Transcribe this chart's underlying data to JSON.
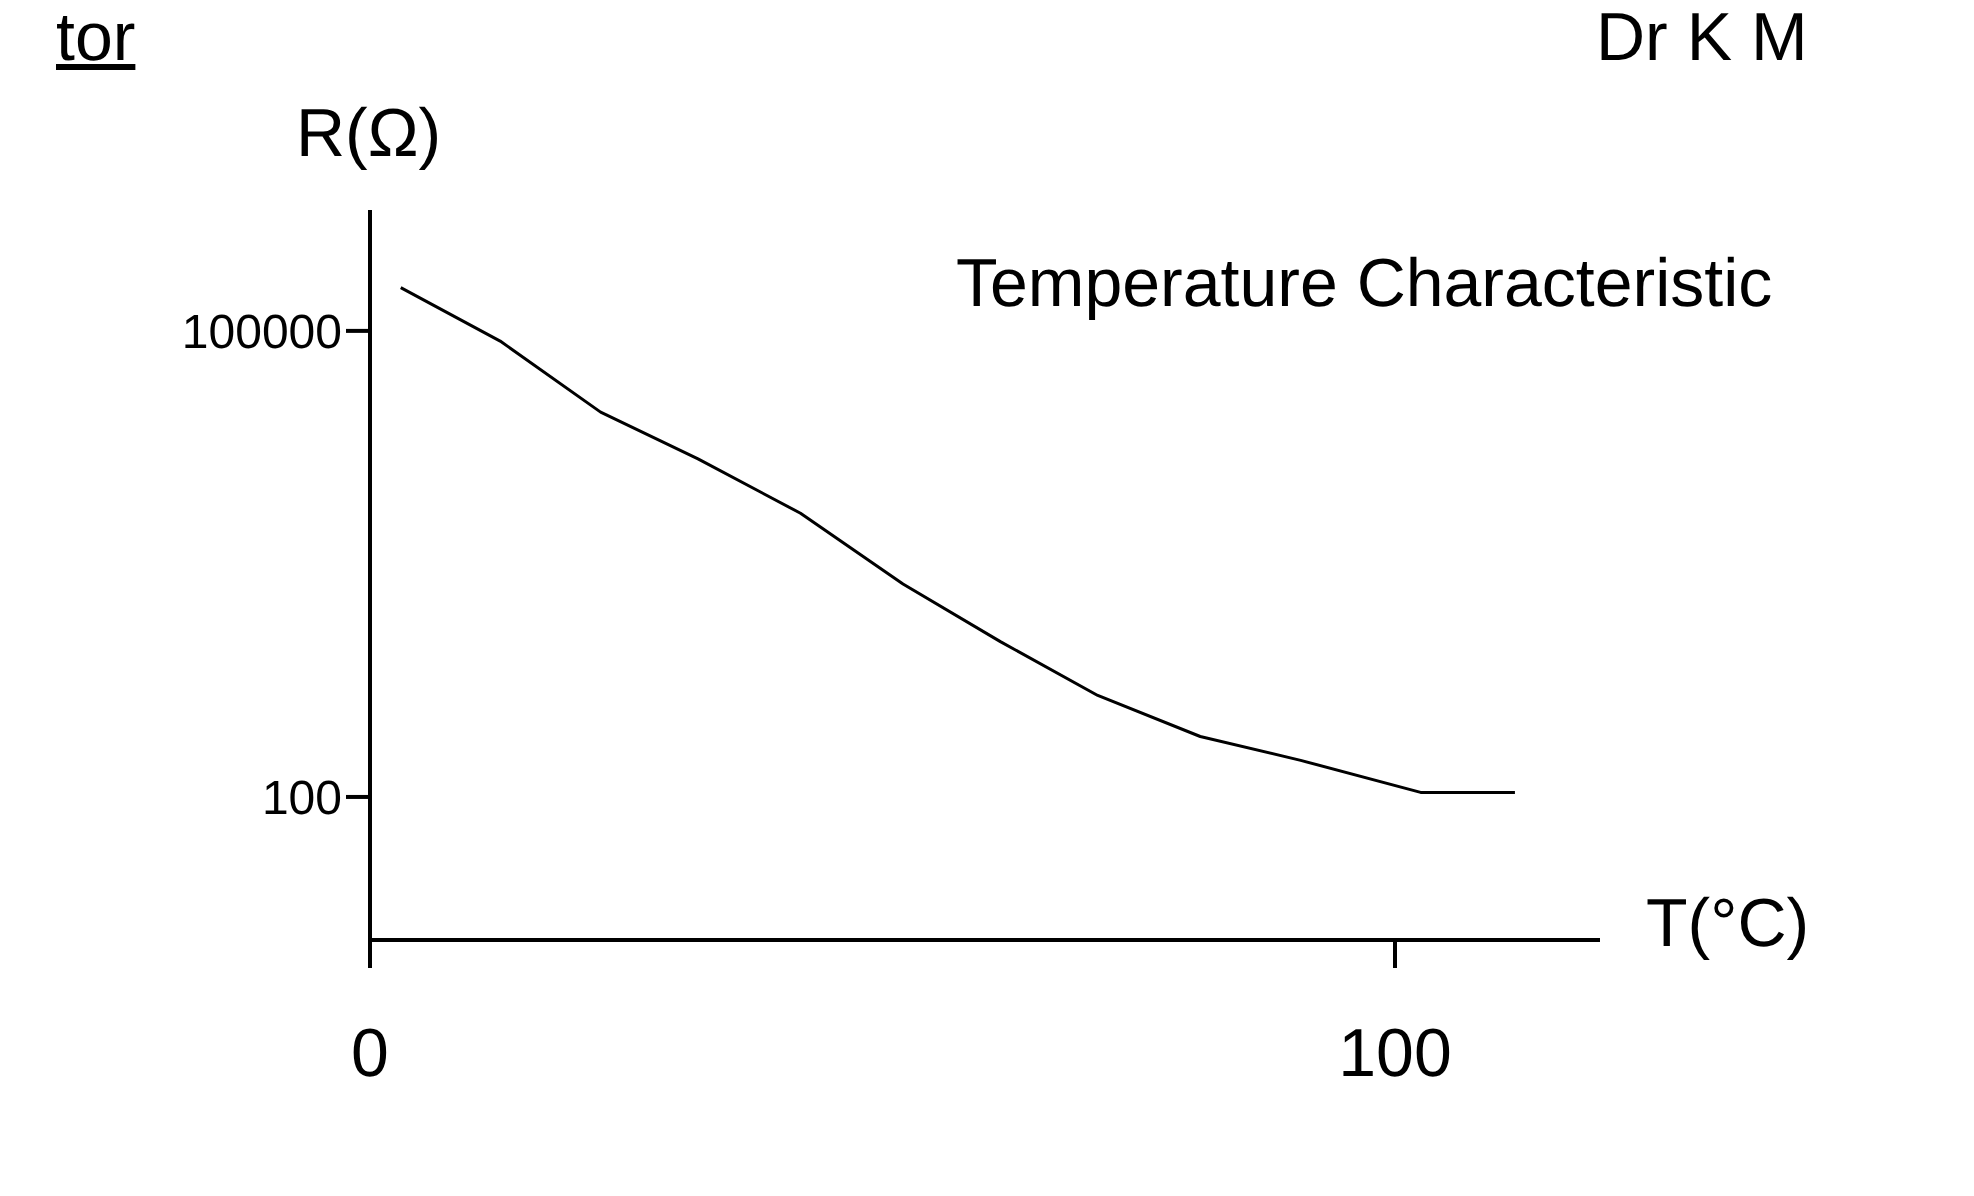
{
  "chart_data": {
    "type": "line",
    "xlabel": "T(°C)",
    "ylabel": "R(Ω)",
    "annotations": [
      "tor",
      "Dr K M",
      "Temperature Characteristic"
    ],
    "x": [
      3,
      12.7,
      22.5,
      32,
      42,
      52,
      61.5,
      71,
      81,
      90.8,
      102.5,
      111.7
    ],
    "series": [
      {
        "color": "#000000",
        "values": [
          190000,
          86000,
          30000,
          15000,
          6700,
          2350,
          1000,
          450,
          245,
          172,
          107,
          107
        ]
      }
    ],
    "xlim": [
      0,
      120
    ],
    "xticks": [
      0,
      100
    ],
    "ylim": [
      12,
      600000
    ],
    "yticks": [
      100,
      100000
    ],
    "log": "y",
    "grid": false,
    "legend": false,
    "marker": "none",
    "line_style": "solid"
  }
}
